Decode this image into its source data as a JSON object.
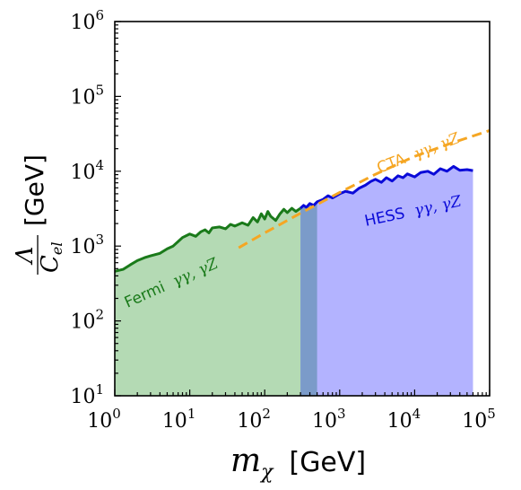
{
  "chart_data": {
    "type": "area",
    "x_scale": "log",
    "y_scale": "log",
    "xlim": [
      1,
      100000
    ],
    "ylim": [
      10,
      1000000
    ],
    "x_ticks": [
      {
        "base": "10",
        "exp": "0"
      },
      {
        "base": "10",
        "exp": "1"
      },
      {
        "base": "10",
        "exp": "2"
      },
      {
        "base": "10",
        "exp": "3"
      },
      {
        "base": "10",
        "exp": "4"
      },
      {
        "base": "10",
        "exp": "5"
      }
    ],
    "y_ticks": [
      {
        "base": "10",
        "exp": "1"
      },
      {
        "base": "10",
        "exp": "2"
      },
      {
        "base": "10",
        "exp": "3"
      },
      {
        "base": "10",
        "exp": "4"
      },
      {
        "base": "10",
        "exp": "5"
      },
      {
        "base": "10",
        "exp": "6"
      }
    ],
    "xlabel": {
      "math": "m",
      "sub": "χ",
      "unit": "[GeV]"
    },
    "ylabel": {
      "num": "Λ",
      "den": "C",
      "den_sub": "el",
      "unit": "[GeV]"
    },
    "grid": false,
    "series": [
      {
        "name": "Fermi γγ, γZ",
        "label_prefix": "Fermi",
        "label_math": "γγ, γZ",
        "style": "filled-limit",
        "line_color": "#1a7a1a",
        "fill_color": "#b4dab4",
        "x": [
          1,
          1.3,
          1.6,
          2,
          2.5,
          3,
          4,
          5,
          6,
          7,
          8,
          10,
          12,
          14,
          16,
          18,
          20,
          25,
          30,
          35,
          40,
          50,
          60,
          70,
          80,
          90,
          100,
          110,
          120,
          140,
          160,
          180,
          200,
          230,
          260,
          300
        ],
        "y": [
          460,
          490,
          560,
          640,
          700,
          740,
          800,
          920,
          1000,
          1150,
          1300,
          1450,
          1350,
          1550,
          1650,
          1500,
          1750,
          1800,
          1700,
          1950,
          1850,
          2050,
          1900,
          2400,
          2100,
          2700,
          2300,
          2900,
          2500,
          2200,
          2700,
          3100,
          2800,
          3200,
          2900,
          3200
        ]
      },
      {
        "name": "HESS γγ, γZ",
        "label_prefix": "HESS",
        "label_math": "γγ, γZ",
        "style": "filled-limit",
        "line_color": "#0a0ad8",
        "fill_color": "#b3b3ff",
        "x": [
          300,
          330,
          360,
          400,
          450,
          500,
          600,
          700,
          800,
          1000,
          1200,
          1500,
          1800,
          2200,
          2600,
          3000,
          3600,
          4200,
          5000,
          6000,
          7000,
          8000,
          10000,
          12000,
          15000,
          18000,
          22000,
          27000,
          33000,
          40000,
          50000,
          60000
        ],
        "y": [
          3200,
          3500,
          3300,
          3700,
          3500,
          3900,
          4200,
          4700,
          4400,
          5000,
          5400,
          5100,
          5900,
          6500,
          7300,
          7800,
          7100,
          8200,
          7400,
          8700,
          8200,
          9200,
          8400,
          9600,
          10000,
          9100,
          10800,
          10000,
          11600,
          10300,
          10500,
          10200
        ]
      },
      {
        "name": "CTA γγ, γZ",
        "label_prefix": "CTA",
        "label_math": "γγ, γZ",
        "style": "dashed",
        "line_color": "#f5a623",
        "x": [
          45,
          100,
          300,
          1000,
          3000,
          10000,
          30000,
          100000
        ],
        "y": [
          950,
          1500,
          2750,
          5200,
          9100,
          15800,
          23500,
          35000
        ]
      }
    ],
    "overlap_fill_color": "#7b9bc9"
  }
}
